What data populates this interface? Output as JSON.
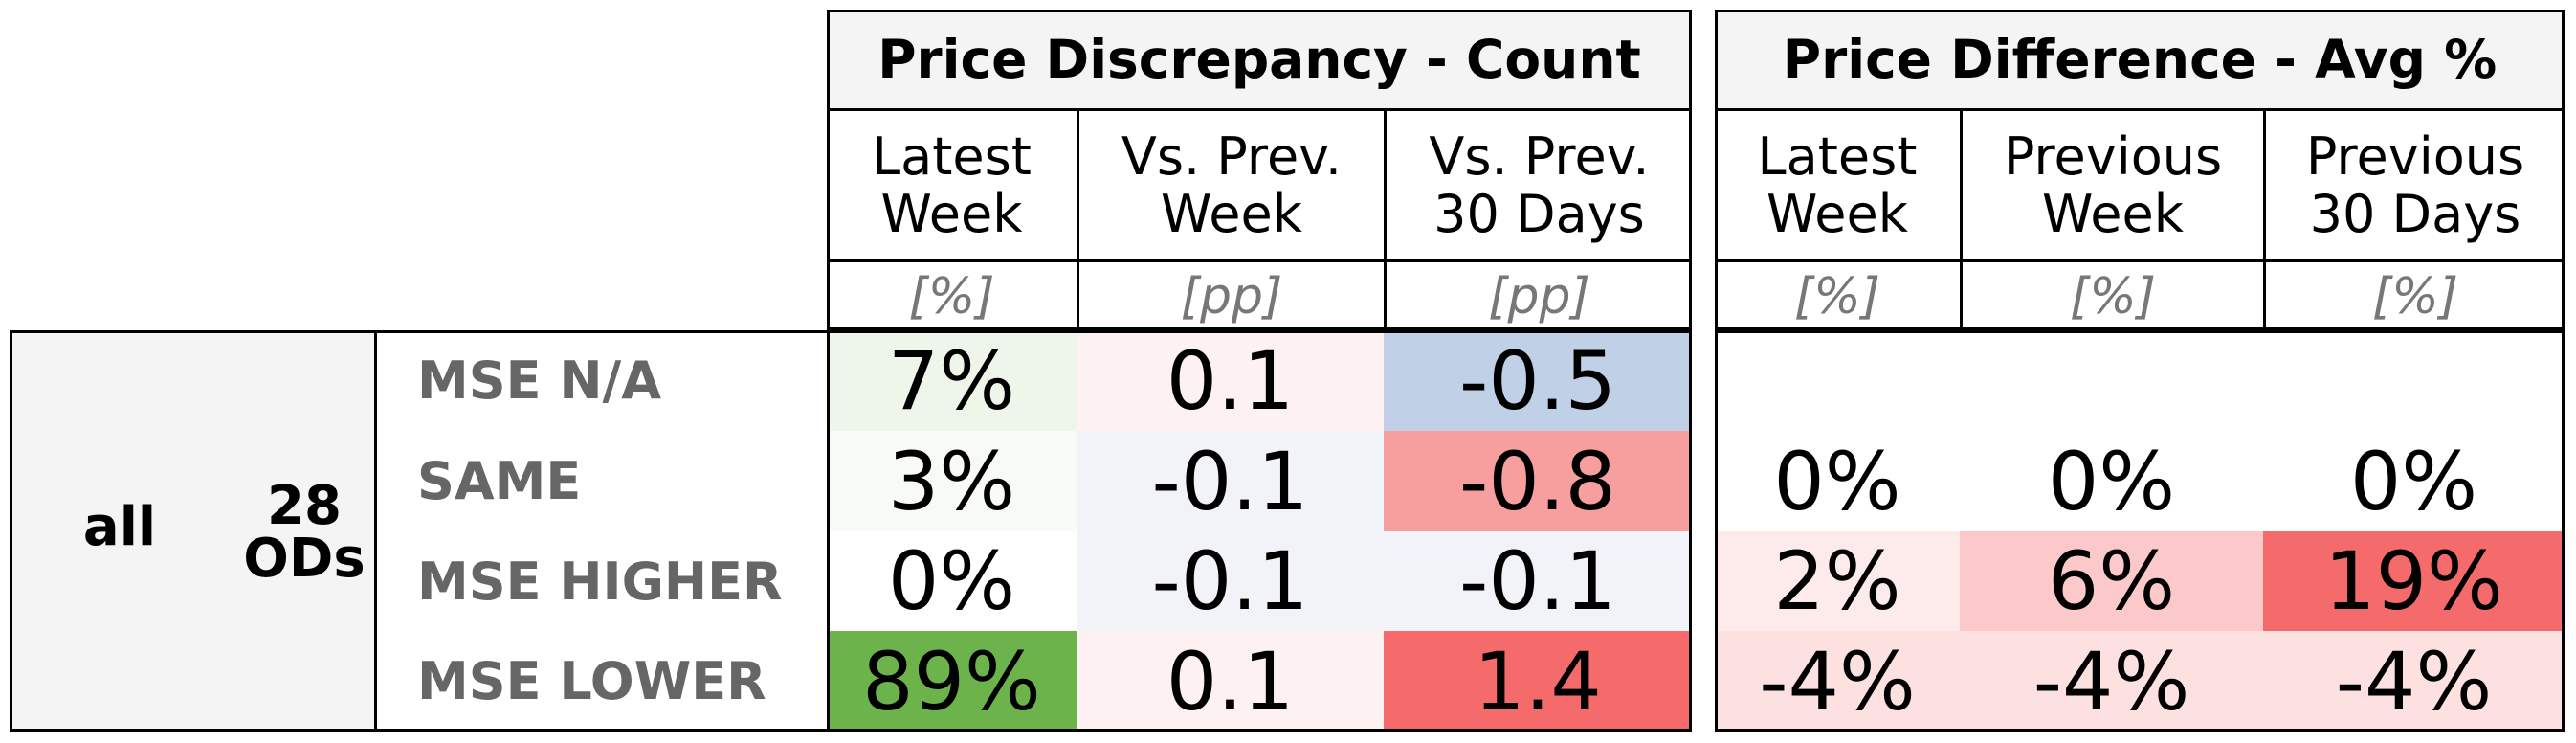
{
  "chart_data": {
    "type": "table",
    "row_group": {
      "name": "all",
      "count": "28",
      "count_unit": "ODs"
    },
    "groups": [
      {
        "title": "Price Discrepancy - Count",
        "columns": [
          {
            "label": "Latest\nWeek",
            "unit": "[%]"
          },
          {
            "label": "Vs. Prev.\nWeek",
            "unit": "[pp]"
          },
          {
            "label": "Vs. Prev.\n30 Days",
            "unit": "[pp]"
          }
        ]
      },
      {
        "title": "Price Difference - Avg %",
        "columns": [
          {
            "label": "Latest\nWeek",
            "unit": "[%]"
          },
          {
            "label": "Previous\nWeek",
            "unit": "[%]"
          },
          {
            "label": "Previous\n30 Days",
            "unit": "[%]"
          }
        ]
      }
    ],
    "rows": [
      {
        "label": "MSE N/A",
        "values": [
          "7%",
          "0.1",
          "-0.5",
          "",
          "",
          ""
        ],
        "colors": [
          "#eef6ea",
          "#fdf1f1",
          "#bfd0e7",
          "#ffffff",
          "#ffffff",
          "#ffffff"
        ]
      },
      {
        "label": "SAME",
        "values": [
          "3%",
          "-0.1",
          "-0.8",
          "0%",
          "0%",
          "0%"
        ],
        "colors": [
          "#f7faf5",
          "#f1f3f8",
          "#f79e9e",
          "#ffffff",
          "#ffffff",
          "#ffffff"
        ]
      },
      {
        "label": "MSE HIGHER",
        "values": [
          "0%",
          "-0.1",
          "-0.1",
          "2%",
          "6%",
          "19%"
        ],
        "colors": [
          "#ffffff",
          "#f1f3f8",
          "#f1f3f8",
          "#fdeaea",
          "#fbc9c9",
          "#f56b6b"
        ]
      },
      {
        "label": "MSE LOWER",
        "values": [
          "89%",
          "0.1",
          "1.4",
          "-4%",
          "-4%",
          "-4%"
        ],
        "colors": [
          "#6cb34b",
          "#fdf1f1",
          "#f56b6b",
          "#fde0e0",
          "#fde0e0",
          "#fde0e0"
        ]
      }
    ]
  }
}
